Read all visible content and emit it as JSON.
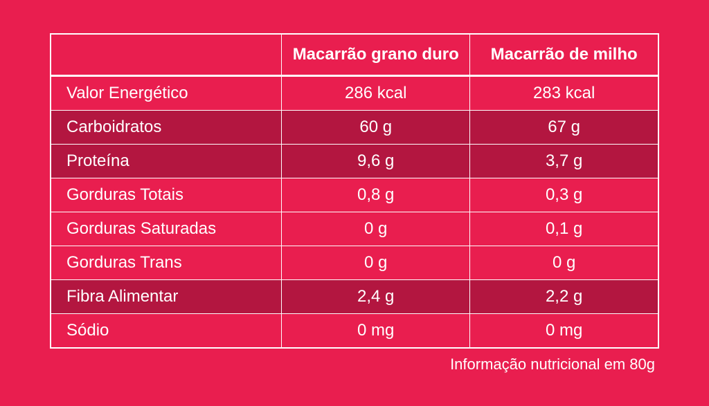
{
  "table": {
    "background_color": "#e91e4f",
    "alt_row_color": "#b31640",
    "border_color": "#ffffff",
    "text_color": "#ffffff",
    "header_empty": "",
    "columns": [
      {
        "label": "Macarrão grano duro"
      },
      {
        "label": "Macarrão de milho"
      }
    ],
    "rows": [
      {
        "label": "Valor Energético",
        "col1": "286 kcal",
        "col2": "283 kcal",
        "alt": false
      },
      {
        "label": "Carboidratos",
        "col1": "60 g",
        "col2": "67 g",
        "alt": true
      },
      {
        "label": "Proteína",
        "col1": "9,6 g",
        "col2": "3,7 g",
        "alt": true
      },
      {
        "label": "Gorduras Totais",
        "col1": "0,8 g",
        "col2": "0,3 g",
        "alt": false
      },
      {
        "label": "Gorduras Saturadas",
        "col1": "0 g",
        "col2": "0,1 g",
        "alt": false
      },
      {
        "label": "Gorduras Trans",
        "col1": "0 g",
        "col2": "0 g",
        "alt": false
      },
      {
        "label": "Fibra Alimentar",
        "col1": "2,4 g",
        "col2": "2,2 g",
        "alt": true
      },
      {
        "label": "Sódio",
        "col1": "0 mg",
        "col2": "0 mg",
        "alt": false
      }
    ]
  },
  "footnote": "Informação nutricional em 80g"
}
